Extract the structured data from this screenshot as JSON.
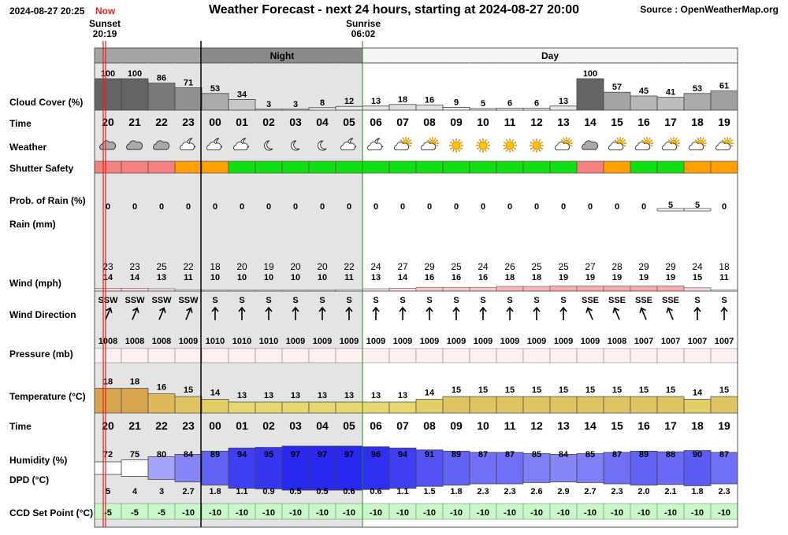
{
  "header": {
    "timestamp": "2024-08-27 20:25",
    "now_label": "Now",
    "title": "Weather Forecast - next 24 hours, starting at 2024-08-27 20:00",
    "source": "Source : OpenWeatherMap.org"
  },
  "events": {
    "sunset_label": "Sunset",
    "sunset_time": "20:19",
    "sunrise_label": "Sunrise",
    "sunrise_time": "06:02"
  },
  "periods": {
    "night_label": "Night",
    "day_label": "Day"
  },
  "row_labels": {
    "cloud": "Cloud Cover (%)",
    "time": "Time",
    "weather": "Weather",
    "shutter": "Shutter Safety",
    "rain_prob": "Prob. of Rain (%)",
    "rain": "Rain (mm)",
    "wind": "Wind (mph)",
    "wind_dir": "Wind Direction",
    "pressure": "Pressure (mb)",
    "temperature": "Temperature (°C)",
    "time2": "Time",
    "humidity": "Humidity (%)",
    "dpd": "DPD (°C)",
    "ccd": "CCD Set Point (°C)"
  },
  "colors": {
    "shutter": {
      "red": "#f48080",
      "orange": "#ffa000",
      "green": "#10e010"
    },
    "night_bg": "#e4e4e4",
    "now_line": "#e8201a",
    "sunrise_line": "#1a8a1a",
    "ccd_bg": "#c8f7c8"
  },
  "chart_data": {
    "type": "table",
    "hours": [
      "20",
      "21",
      "22",
      "23",
      "00",
      "01",
      "02",
      "03",
      "04",
      "05",
      "06",
      "07",
      "08",
      "09",
      "10",
      "11",
      "12",
      "13",
      "14",
      "15",
      "16",
      "17",
      "18",
      "19"
    ],
    "cloud_cover": [
      100,
      100,
      86,
      71,
      53,
      34,
      3,
      3,
      8,
      12,
      13,
      18,
      16,
      9,
      5,
      6,
      6,
      13,
      100,
      57,
      45,
      41,
      53,
      61
    ],
    "weather_icons": [
      "cloudy-icon",
      "cloudy-icon",
      "cloudy-icon",
      "partly-cloudy-night-icon",
      "partly-cloudy-night-icon",
      "partly-cloudy-night-icon",
      "clear-night-icon",
      "clear-night-icon",
      "clear-night-icon",
      "partly-cloudy-night-icon",
      "partly-cloudy-night-icon",
      "partly-cloudy-day-icon",
      "partly-cloudy-day-icon",
      "sunny-icon",
      "sunny-icon",
      "sunny-icon",
      "sunny-icon",
      "partly-cloudy-day-icon",
      "cloudy-icon",
      "partly-cloudy-day-icon",
      "partly-cloudy-day-icon",
      "partly-cloudy-day-icon",
      "partly-cloudy-day-icon",
      "partly-cloudy-day-icon"
    ],
    "shutter_safety": [
      "red",
      "red",
      "red",
      "orange",
      "orange",
      "green",
      "green",
      "green",
      "green",
      "green",
      "green",
      "green",
      "green",
      "green",
      "green",
      "green",
      "green",
      "green",
      "red",
      "orange",
      "green",
      "green",
      "orange",
      "orange"
    ],
    "rain_probability": [
      0,
      0,
      0,
      0,
      0,
      0,
      0,
      0,
      0,
      0,
      0,
      0,
      0,
      0,
      0,
      0,
      0,
      0,
      0,
      0,
      0,
      5,
      5,
      0
    ],
    "wind_gust": [
      23,
      23,
      25,
      22,
      18,
      20,
      19,
      20,
      20,
      22,
      24,
      27,
      29,
      25,
      24,
      26,
      25,
      25,
      27,
      28,
      29,
      29,
      24,
      18
    ],
    "wind_speed": [
      14,
      14,
      13,
      11,
      10,
      10,
      10,
      10,
      10,
      11,
      13,
      14,
      16,
      16,
      16,
      18,
      18,
      19,
      19,
      19,
      19,
      19,
      15,
      11
    ],
    "wind_direction": [
      "SSW",
      "SSW",
      "SSW",
      "SSW",
      "S",
      "S",
      "S",
      "S",
      "S",
      "S",
      "S",
      "S",
      "S",
      "S",
      "S",
      "S",
      "S",
      "S",
      "SSE",
      "SSE",
      "SSE",
      "SSE",
      "S",
      "S"
    ],
    "pressure": [
      1008,
      1008,
      1008,
      1009,
      1010,
      1010,
      1010,
      1009,
      1009,
      1009,
      1009,
      1009,
      1009,
      1009,
      1009,
      1009,
      1009,
      1009,
      1009,
      1008,
      1007,
      1007,
      1007,
      1007
    ],
    "temperature": [
      18,
      18,
      16,
      15,
      14,
      13,
      13,
      13,
      13,
      13,
      13,
      13,
      14,
      15,
      15,
      15,
      15,
      15,
      15,
      15,
      15,
      15,
      14,
      15
    ],
    "humidity": [
      72,
      75,
      80,
      84,
      89,
      94,
      95,
      97,
      97,
      97,
      96,
      94,
      91,
      89,
      87,
      87,
      85,
      84,
      85,
      87,
      89,
      88,
      90,
      87
    ],
    "dpd": [
      "5",
      "4",
      "3",
      "2.7",
      "1.8",
      "1.1",
      "0.9",
      "0.5",
      "0.5",
      "0.6",
      "0.6",
      "1.1",
      "1.5",
      "1.8",
      "2.3",
      "2.3",
      "2.6",
      "2.9",
      "2.7",
      "2.3",
      "2.0",
      "2.1",
      "1.8",
      "2.3"
    ],
    "ccd_set_point": [
      -5,
      -5,
      -5,
      -10,
      -10,
      -10,
      -10,
      -10,
      -10,
      -10,
      -10,
      -10,
      -10,
      -10,
      -10,
      -10,
      -10,
      -10,
      -10,
      -10,
      -10,
      -10,
      -10,
      -10
    ]
  }
}
